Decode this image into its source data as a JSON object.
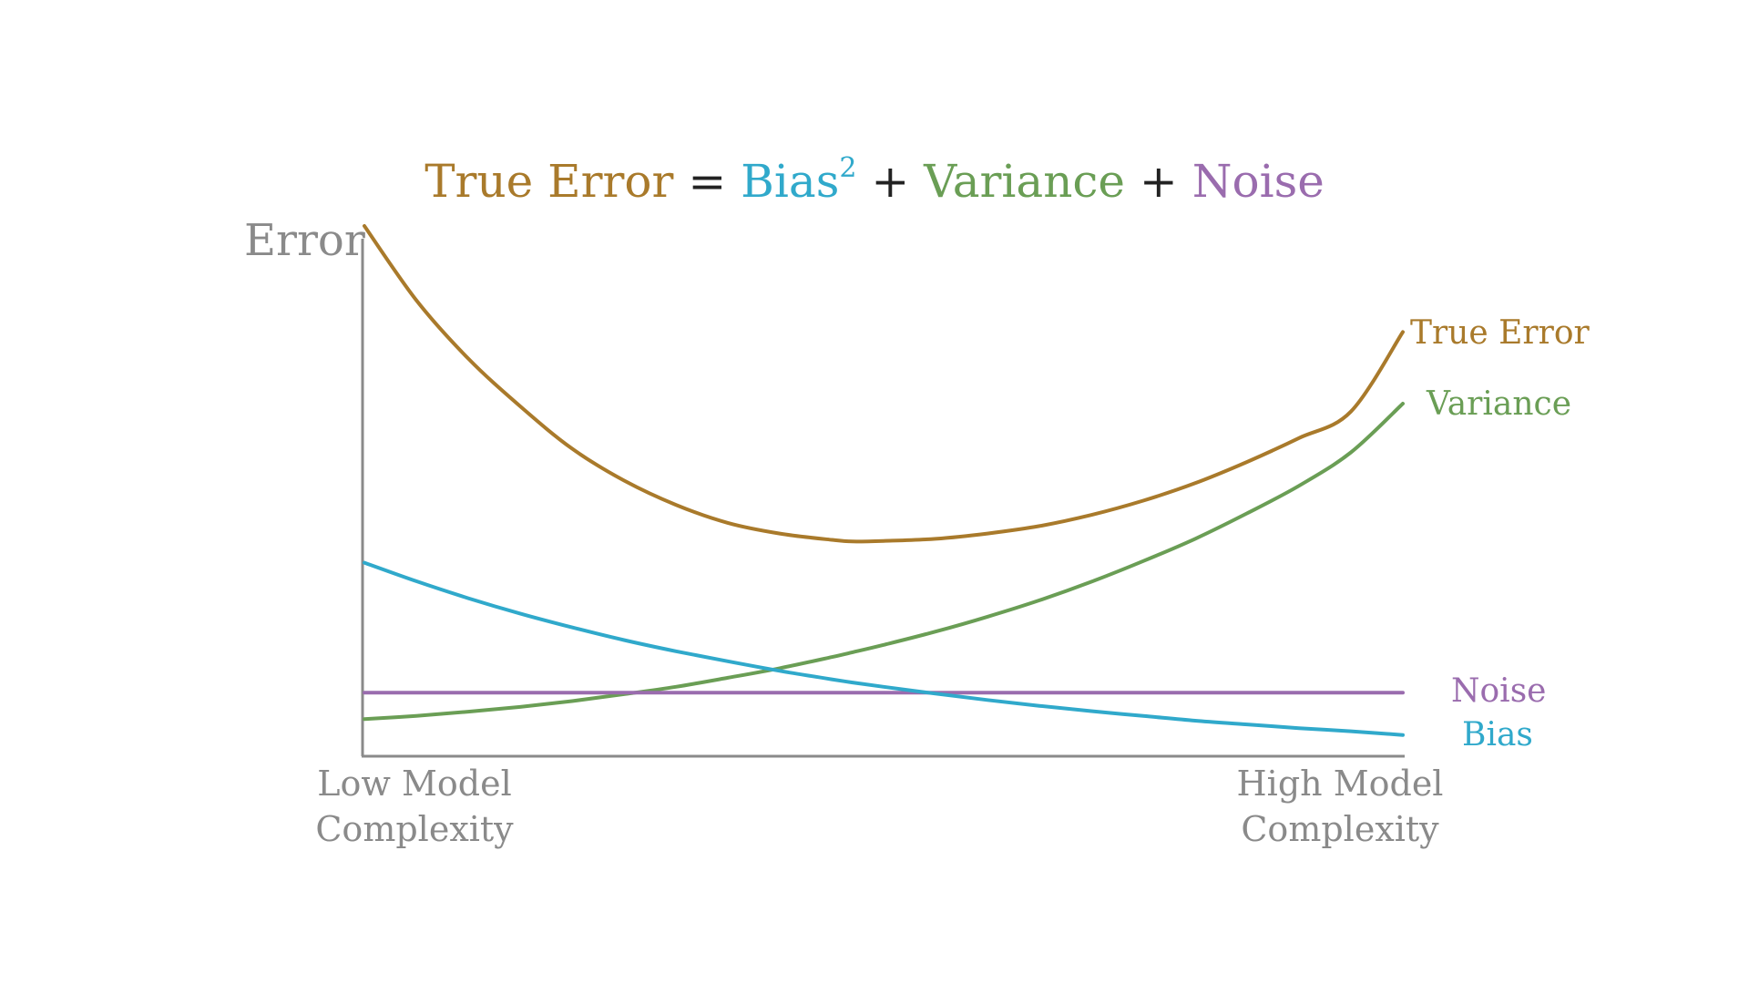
{
  "equation": {
    "true_error": "True Error",
    "equals": "=",
    "bias": "Bias",
    "bias_exp": "2",
    "plus1": "+",
    "variance": "Variance",
    "plus2": "+",
    "noise": "Noise"
  },
  "axes": {
    "y_title": "Error",
    "x_low_line1": "Low Model",
    "x_low_line2": "Complexity",
    "x_high_line1": "High Model",
    "x_high_line2": "Complexity"
  },
  "colors": {
    "true_error": "#a97a2b",
    "bias": "#30a9cb",
    "variance": "#6a9e55",
    "noise": "#9a6cae",
    "axis": "#8a8a8a"
  },
  "chart_data": {
    "type": "line",
    "x": [
      0.0,
      0.05,
      0.1,
      0.15,
      0.2,
      0.25,
      0.3,
      0.35,
      0.4,
      0.45,
      0.47,
      0.5,
      0.55,
      0.6,
      0.65,
      0.7,
      0.75,
      0.8,
      0.85,
      0.9,
      0.95,
      1.0
    ],
    "xlabel": "",
    "ylabel": "Error",
    "x_tick_labels": {
      "low": "Low Model Complexity",
      "high": "High Model Complexity"
    },
    "xlim": [
      0,
      1
    ],
    "ylim": [
      0,
      1
    ],
    "grid": false,
    "series": [
      {
        "name": "True Error",
        "color": "#a97a2b",
        "values": [
          1.0,
          0.86,
          0.75,
          0.66,
          0.58,
          0.52,
          0.474,
          0.44,
          0.42,
          0.408,
          0.405,
          0.406,
          0.41,
          0.42,
          0.434,
          0.455,
          0.482,
          0.515,
          0.555,
          0.6,
          0.65,
          0.8
        ]
      },
      {
        "name": "Variance",
        "color": "#6a9e55",
        "values": [
          0.07,
          0.076,
          0.084,
          0.093,
          0.104,
          0.117,
          0.131,
          0.148,
          0.166,
          0.187,
          0.196,
          0.21,
          0.235,
          0.263,
          0.294,
          0.329,
          0.368,
          0.41,
          0.458,
          0.51,
          0.573,
          0.665
        ]
      },
      {
        "name": "Noise",
        "color": "#9a6cae",
        "values": [
          0.12,
          0.12,
          0.12,
          0.12,
          0.12,
          0.12,
          0.12,
          0.12,
          0.12,
          0.12,
          0.12,
          0.12,
          0.12,
          0.12,
          0.12,
          0.12,
          0.12,
          0.12,
          0.12,
          0.12,
          0.12,
          0.12
        ]
      },
      {
        "name": "Bias",
        "color": "#30a9cb",
        "values": [
          0.365,
          0.33,
          0.298,
          0.269,
          0.243,
          0.219,
          0.198,
          0.179,
          0.161,
          0.145,
          0.139,
          0.131,
          0.118,
          0.106,
          0.095,
          0.085,
          0.076,
          0.067,
          0.06,
          0.053,
          0.047,
          0.04
        ]
      }
    ]
  }
}
